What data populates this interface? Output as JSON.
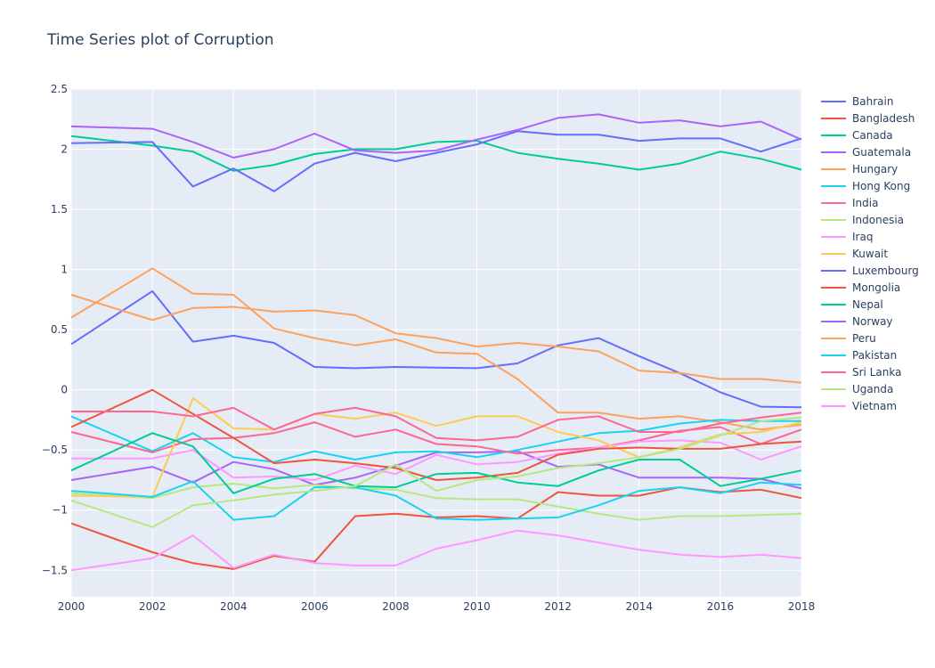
{
  "chart_data": {
    "type": "line",
    "title": "Time Series plot of Corruption",
    "xlabel": "",
    "ylabel": "",
    "xlim": [
      2000,
      2018
    ],
    "ylim": [
      -1.72,
      2.5
    ],
    "x": [
      2000,
      2002,
      2003,
      2004,
      2005,
      2006,
      2007,
      2008,
      2009,
      2010,
      2011,
      2012,
      2013,
      2014,
      2015,
      2016,
      2017,
      2018
    ],
    "x_ticks": [
      2000,
      2002,
      2004,
      2006,
      2008,
      2010,
      2012,
      2014,
      2016,
      2018
    ],
    "y_ticks": [
      -1.5,
      -1,
      -0.5,
      0,
      0.5,
      1,
      1.5,
      2,
      2.5
    ],
    "grid": true,
    "legend_position": "right",
    "plot_background": "#e5ecf6",
    "series": [
      {
        "name": "Bahrain",
        "color": "#636efa",
        "values": [
          0.38,
          0.82,
          0.4,
          0.45,
          0.39,
          0.19,
          0.18,
          0.19,
          0.185,
          0.18,
          0.22,
          0.37,
          0.43,
          0.28,
          0.14,
          -0.02,
          -0.14,
          -0.145
        ]
      },
      {
        "name": "Bangladesh",
        "color": "#EF553B",
        "values": [
          -1.11,
          -1.35,
          -1.44,
          -1.49,
          -1.38,
          -1.43,
          -1.05,
          -1.03,
          -1.06,
          -1.05,
          -1.07,
          -0.85,
          -0.88,
          -0.88,
          -0.81,
          -0.85,
          -0.83,
          -0.9
        ]
      },
      {
        "name": "Canada",
        "color": "#00cc96",
        "values": [
          2.11,
          2.03,
          1.98,
          1.82,
          1.87,
          1.96,
          2.0,
          2.0,
          2.06,
          2.07,
          1.97,
          1.92,
          1.88,
          1.83,
          1.88,
          1.98,
          1.92,
          1.83
        ]
      },
      {
        "name": "Guatemala",
        "color": "#ab63fa",
        "values": [
          -0.75,
          -0.64,
          -0.77,
          -0.6,
          -0.66,
          -0.79,
          -0.73,
          -0.63,
          -0.52,
          -0.52,
          -0.51,
          -0.64,
          -0.62,
          -0.73,
          -0.73,
          -0.73,
          -0.74,
          -0.82
        ]
      },
      {
        "name": "Hungary",
        "color": "#FFA15A",
        "values": [
          0.6,
          1.01,
          0.8,
          0.79,
          0.51,
          0.43,
          0.37,
          0.42,
          0.31,
          0.3,
          0.09,
          -0.19,
          -0.19,
          -0.24,
          -0.22,
          -0.27,
          -0.33,
          -0.29
        ]
      },
      {
        "name": "Hong Kong",
        "color": "#19d3f3",
        "values": [
          -0.22,
          -0.51,
          -0.36,
          -0.56,
          -0.6,
          -0.51,
          -0.58,
          -0.52,
          -0.51,
          -0.56,
          -0.5,
          -0.43,
          -0.36,
          -0.34,
          -0.28,
          -0.25,
          -0.26,
          -0.26
        ]
      },
      {
        "name": "India",
        "color": "#FF6692",
        "values": [
          -0.35,
          -0.52,
          -0.41,
          -0.4,
          -0.36,
          -0.27,
          -0.39,
          -0.33,
          -0.45,
          -0.47,
          -0.53,
          -0.5,
          -0.48,
          -0.42,
          -0.34,
          -0.31,
          -0.45,
          -0.33
        ]
      },
      {
        "name": "Indonesia",
        "color": "#B6E880",
        "values": [
          -0.86,
          -0.9,
          -0.81,
          -0.78,
          -0.82,
          -0.79,
          -0.82,
          -0.83,
          -0.9,
          -0.91,
          -0.91,
          -0.97,
          -1.03,
          -1.08,
          -1.05,
          -1.05,
          -1.04,
          -1.03
        ]
      },
      {
        "name": "Iraq",
        "color": "#FF97FF",
        "values": [
          -0.57,
          -0.57,
          -0.5,
          -0.73,
          -0.72,
          -0.75,
          -0.63,
          -0.7,
          -0.54,
          -0.62,
          -0.6,
          -0.53,
          -0.48,
          -0.43,
          -0.42,
          -0.44,
          -0.58,
          -0.47
        ]
      },
      {
        "name": "Kuwait",
        "color": "#FECB52",
        "values": [
          -0.88,
          -0.89,
          -0.07,
          -0.32,
          -0.33,
          -0.2,
          -0.24,
          -0.19,
          -0.3,
          -0.22,
          -0.22,
          -0.35,
          -0.42,
          -0.56,
          -0.48,
          -0.37,
          -0.35,
          -0.27
        ]
      },
      {
        "name": "Luxembourg",
        "color": "#636efa",
        "values": [
          2.05,
          2.06,
          1.69,
          1.84,
          1.65,
          1.88,
          1.97,
          1.9,
          1.97,
          2.04,
          2.15,
          2.12,
          2.12,
          2.07,
          2.09,
          2.09,
          1.98,
          2.09
        ]
      },
      {
        "name": "Mongolia",
        "color": "#EF553B",
        "values": [
          -0.31,
          0.0,
          -0.2,
          -0.4,
          -0.61,
          -0.58,
          -0.61,
          -0.65,
          -0.75,
          -0.73,
          -0.69,
          -0.54,
          -0.49,
          -0.48,
          -0.49,
          -0.49,
          -0.45,
          -0.43
        ]
      },
      {
        "name": "Nepal",
        "color": "#00cc96",
        "values": [
          -0.67,
          -0.36,
          -0.47,
          -0.86,
          -0.74,
          -0.7,
          -0.8,
          -0.81,
          -0.7,
          -0.69,
          -0.77,
          -0.8,
          -0.67,
          -0.58,
          -0.58,
          -0.8,
          -0.74,
          -0.67
        ]
      },
      {
        "name": "Norway",
        "color": "#ab63fa",
        "values": [
          2.19,
          2.17,
          2.06,
          1.93,
          2.0,
          2.13,
          1.99,
          1.97,
          1.99,
          2.08,
          2.16,
          2.26,
          2.29,
          2.22,
          2.24,
          2.19,
          2.23,
          2.08
        ]
      },
      {
        "name": "Peru",
        "color": "#FFA15A",
        "values": [
          0.79,
          0.58,
          0.68,
          0.69,
          0.65,
          0.66,
          0.62,
          0.47,
          0.43,
          0.36,
          0.39,
          0.36,
          0.32,
          0.16,
          0.14,
          0.09,
          0.09,
          0.06
        ]
      },
      {
        "name": "Pakistan",
        "color": "#19d3f3",
        "values": [
          -0.84,
          -0.89,
          -0.76,
          -1.08,
          -1.05,
          -0.81,
          -0.81,
          -0.88,
          -1.07,
          -1.08,
          -1.07,
          -1.06,
          -0.96,
          -0.84,
          -0.81,
          -0.86,
          -0.77,
          -0.79
        ]
      },
      {
        "name": "Sri Lanka",
        "color": "#FF6692",
        "values": [
          -0.18,
          -0.18,
          -0.22,
          -0.15,
          -0.33,
          -0.2,
          -0.15,
          -0.22,
          -0.4,
          -0.42,
          -0.39,
          -0.25,
          -0.22,
          -0.35,
          -0.35,
          -0.28,
          -0.23,
          -0.19
        ]
      },
      {
        "name": "Uganda",
        "color": "#B6E880",
        "values": [
          -0.92,
          -1.14,
          -0.96,
          -0.92,
          -0.87,
          -0.84,
          -0.8,
          -0.62,
          -0.84,
          -0.75,
          -0.72,
          -0.65,
          -0.61,
          -0.56,
          -0.49,
          -0.38,
          -0.26,
          -0.23
        ]
      },
      {
        "name": "Vietnam",
        "color": "#FF97FF",
        "values": [
          -1.5,
          -1.4,
          -1.21,
          -1.48,
          -1.37,
          -1.44,
          -1.46,
          -1.46,
          -1.32,
          -1.25,
          -1.17,
          -1.21,
          -1.27,
          -1.33,
          -1.37,
          -1.39,
          -1.37,
          -1.4
        ]
      }
    ]
  }
}
